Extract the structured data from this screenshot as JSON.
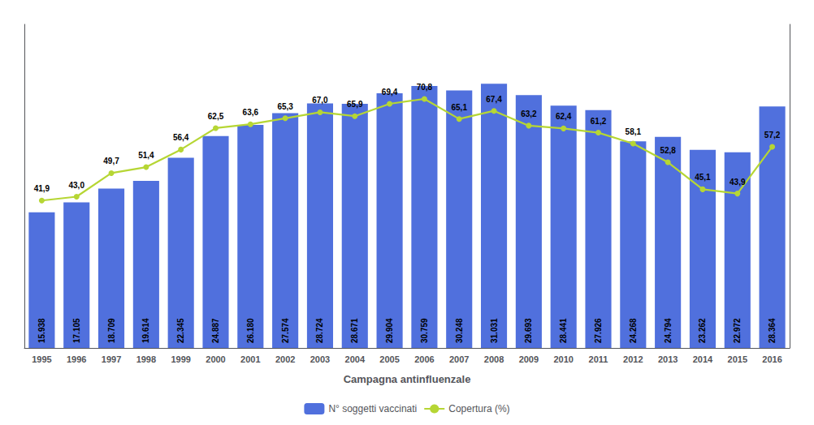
{
  "chart_data": {
    "type": "bar",
    "xlabel": "Campagna antinfluenzale",
    "categories": [
      "1995",
      "1996",
      "1997",
      "1998",
      "1999",
      "2000",
      "2001",
      "2002",
      "2003",
      "2004",
      "2005",
      "2006",
      "2007",
      "2008",
      "2009",
      "2010",
      "2011",
      "2012",
      "2013",
      "2014",
      "2015",
      "2016"
    ],
    "series": [
      {
        "name": "N° soggetti vaccinati",
        "type": "bar",
        "values": [
          15938,
          17105,
          18709,
          19614,
          22345,
          24887,
          26180,
          27574,
          28724,
          28671,
          29904,
          30759,
          30248,
          31031,
          29693,
          28441,
          27926,
          24268,
          24794,
          23262,
          22972,
          28364
        ],
        "value_labels": [
          "15.938",
          "17.105",
          "18.709",
          "19.614",
          "22.345",
          "24.887",
          "26.180",
          "27.574",
          "28.724",
          "28.671",
          "29.904",
          "30.759",
          "30.248",
          "31.031",
          "29.693",
          "28.441",
          "27.926",
          "24.268",
          "24.794",
          "23.262",
          "22.972",
          "28.364"
        ]
      },
      {
        "name": "Copertura (%)",
        "type": "line",
        "axis": "y2",
        "marker": "circle",
        "values": [
          41.9,
          43.0,
          49.7,
          51.4,
          56.4,
          62.5,
          63.6,
          65.3,
          67.0,
          65.9,
          69.4,
          70.8,
          65.1,
          67.4,
          63.2,
          62.4,
          61.2,
          58.1,
          52.8,
          45.1,
          43.9,
          57.2
        ],
        "value_labels": [
          "41,9",
          "43,0",
          "49,7",
          "51,4",
          "56,4",
          "62,5",
          "63,6",
          "65,3",
          "67,0",
          "65,9",
          "69,4",
          "70,8",
          "65,1",
          "67,4",
          "63,2",
          "62,4",
          "61,2",
          "58,1",
          "52,8",
          "45,1",
          "43,9",
          "57,2"
        ]
      }
    ],
    "ylim": [
      0,
      38000
    ],
    "y2lim": [
      0,
      92
    ],
    "grid": false,
    "legend": "bottom",
    "data_labels": true,
    "tick_labels": "x"
  }
}
